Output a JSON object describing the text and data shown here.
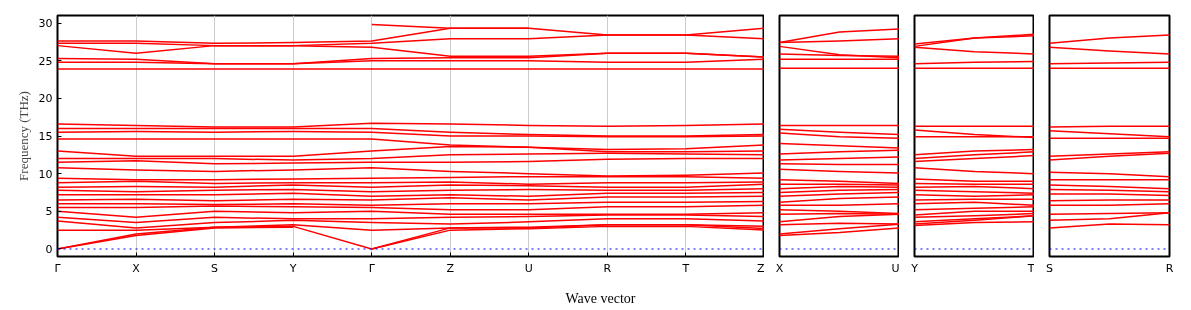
{
  "chart_data": [
    {
      "type": "line",
      "ylabel": "Frequency (THz)",
      "xlabel": "Wave vector",
      "categories": [
        "Γ",
        "X",
        "S",
        "Y",
        "Γ",
        "Z",
        "U",
        "R",
        "T",
        "Z"
      ],
      "ylim": [
        -1,
        31
      ],
      "yticks": [
        0,
        5,
        10,
        15,
        20,
        25,
        30
      ],
      "grid": "x",
      "marker": "none",
      "line_style": "solid",
      "ref_lines": [
        {
          "axis": "y",
          "value": 0,
          "color": "#0000ff",
          "line_style": "dotted"
        }
      ],
      "series": [
        {
          "color": "#ff0000",
          "values": [
            27.6,
            27.6,
            27.3,
            27.4,
            27.6,
            29.3,
            29.3,
            28.4,
            28.4,
            29.3
          ]
        },
        {
          "color": "#ff0000",
          "values": [
            27.3,
            27.3,
            27.0,
            27.0,
            27.3,
            27.9,
            27.9,
            28.4,
            28.4,
            27.9
          ]
        },
        {
          "color": "#ff0000",
          "values": [
            27.0,
            26.0,
            27.0,
            27.0,
            26.8,
            25.6,
            25.6,
            26.0,
            26.0,
            25.5
          ]
        },
        {
          "color": "#ff0000",
          "values": [
            25.3,
            25.2,
            24.6,
            24.6,
            25.3,
            25.4,
            25.4,
            26.0,
            26.0,
            25.5
          ]
        },
        {
          "color": "#ff0000",
          "values": [
            24.8,
            24.8,
            24.6,
            24.6,
            25.0,
            25.0,
            25.0,
            24.8,
            24.8,
            25.2
          ]
        },
        {
          "color": "#ff0000",
          "values": [
            23.9,
            23.9,
            23.9,
            23.9,
            23.9,
            23.9,
            23.9,
            23.9,
            23.9,
            23.9
          ]
        },
        {
          "color": "#ff0000",
          "values": [
            null,
            null,
            null,
            null,
            29.8,
            29.3,
            29.3,
            null,
            null,
            null
          ]
        },
        {
          "color": "#ff0000",
          "values": [
            16.6,
            16.4,
            16.2,
            16.2,
            16.7,
            16.6,
            16.4,
            16.3,
            16.4,
            16.6
          ]
        },
        {
          "color": "#ff0000",
          "values": [
            16.0,
            16.0,
            16.0,
            16.0,
            16.0,
            15.5,
            15.2,
            15.0,
            15.0,
            15.2
          ]
        },
        {
          "color": "#ff0000",
          "values": [
            15.5,
            15.6,
            15.5,
            15.6,
            15.5,
            15.0,
            15.0,
            14.9,
            14.9,
            15.0
          ]
        },
        {
          "color": "#ff0000",
          "values": [
            14.6,
            14.6,
            14.6,
            14.6,
            14.6,
            13.8,
            13.5,
            13.2,
            13.3,
            13.8
          ]
        },
        {
          "color": "#ff0000",
          "values": [
            13.0,
            12.3,
            12.3,
            12.3,
            13.0,
            13.6,
            13.5,
            12.9,
            12.9,
            13.0
          ]
        },
        {
          "color": "#ff0000",
          "values": [
            12.0,
            12.0,
            12.0,
            11.8,
            12.0,
            12.5,
            12.6,
            12.7,
            12.6,
            12.5
          ]
        },
        {
          "color": "#ff0000",
          "values": [
            11.5,
            11.7,
            11.3,
            11.4,
            11.5,
            11.5,
            11.6,
            11.9,
            12.0,
            12.0
          ]
        },
        {
          "color": "#ff0000",
          "values": [
            10.8,
            10.5,
            10.3,
            10.5,
            10.8,
            10.3,
            10.0,
            9.7,
            9.8,
            10.1
          ]
        },
        {
          "color": "#ff0000",
          "values": [
            9.4,
            9.2,
            9.2,
            9.3,
            9.4,
            9.5,
            9.6,
            9.6,
            9.6,
            9.4
          ]
        },
        {
          "color": "#ff0000",
          "values": [
            8.8,
            9.0,
            8.7,
            8.8,
            8.8,
            8.9,
            8.6,
            8.8,
            8.8,
            8.9
          ]
        },
        {
          "color": "#ff0000",
          "values": [
            8.2,
            8.3,
            8.2,
            8.5,
            8.2,
            8.5,
            8.4,
            8.2,
            8.2,
            8.6
          ]
        },
        {
          "color": "#ff0000",
          "values": [
            7.8,
            7.6,
            7.8,
            7.9,
            7.6,
            7.8,
            7.9,
            7.8,
            7.8,
            8.0
          ]
        },
        {
          "color": "#ff0000",
          "values": [
            7.2,
            7.2,
            7.2,
            7.4,
            7.0,
            7.2,
            7.0,
            7.4,
            7.4,
            7.5
          ]
        },
        {
          "color": "#ff0000",
          "values": [
            6.5,
            6.6,
            6.4,
            6.6,
            6.5,
            6.8,
            6.5,
            6.9,
            6.9,
            7.0
          ]
        },
        {
          "color": "#ff0000",
          "values": [
            6.0,
            6.0,
            5.9,
            6.0,
            5.8,
            6.0,
            6.0,
            6.2,
            6.2,
            6.3
          ]
        },
        {
          "color": "#ff0000",
          "values": [
            5.5,
            5.5,
            5.7,
            5.6,
            5.5,
            5.2,
            5.2,
            5.6,
            5.6,
            5.8
          ]
        },
        {
          "color": "#ff0000",
          "values": [
            5.0,
            4.2,
            5.0,
            4.8,
            5.0,
            4.6,
            4.6,
            4.6,
            4.6,
            4.8
          ]
        },
        {
          "color": "#ff0000",
          "values": [
            4.2,
            3.5,
            4.2,
            4.0,
            4.0,
            4.2,
            4.3,
            4.5,
            4.5,
            4.3
          ]
        },
        {
          "color": "#ff0000",
          "values": [
            3.7,
            2.8,
            3.5,
            3.8,
            3.5,
            3.3,
            3.6,
            4.0,
            4.0,
            3.7
          ]
        },
        {
          "color": "#ff0000",
          "values": [
            2.5,
            2.5,
            2.9,
            3.2,
            2.5,
            2.8,
            2.9,
            3.2,
            3.2,
            3.0
          ]
        },
        {
          "color": "#ff0000",
          "values": [
            0,
            2.0,
            2.9,
            3.0,
            0,
            2.8,
            2.8,
            3.2,
            3.2,
            2.7
          ]
        },
        {
          "color": "#ff0000",
          "values": [
            0,
            1.8,
            2.8,
            2.9,
            null,
            null,
            null,
            null,
            null,
            null
          ]
        },
        {
          "color": "#ff0000",
          "values": [
            null,
            null,
            null,
            null,
            0,
            2.5,
            2.7,
            3.0,
            3.0,
            2.5
          ]
        }
      ]
    },
    {
      "type": "line",
      "categories": [
        "X",
        null,
        "U"
      ],
      "ylim": [
        -1,
        31
      ],
      "yticks": [
        0,
        5,
        10,
        15,
        20,
        25,
        30
      ],
      "tick_labels": "x",
      "marker": "none",
      "line_style": "solid",
      "ref_lines": [
        {
          "axis": "y",
          "value": 0,
          "color": "#0000ff",
          "line_style": "dotted"
        }
      ],
      "series": [
        {
          "color": "#ff0000",
          "values": [
            27.4,
            28.8,
            29.2
          ]
        },
        {
          "color": "#ff0000",
          "values": [
            27.4,
            27.6,
            27.9
          ]
        },
        {
          "color": "#ff0000",
          "values": [
            26.9,
            25.8,
            25.4
          ]
        },
        {
          "color": "#ff0000",
          "values": [
            25.9,
            25.7,
            25.6
          ]
        },
        {
          "color": "#ff0000",
          "values": [
            25.2,
            25.2,
            25.2
          ]
        },
        {
          "color": "#ff0000",
          "values": [
            24.0,
            24.0,
            24.0
          ]
        },
        {
          "color": "#ff0000",
          "values": [
            16.4,
            16.4,
            16.4
          ]
        },
        {
          "color": "#ff0000",
          "values": [
            15.9,
            15.5,
            15.2
          ]
        },
        {
          "color": "#ff0000",
          "values": [
            15.4,
            14.9,
            14.7
          ]
        },
        {
          "color": "#ff0000",
          "values": [
            14.0,
            13.7,
            13.4
          ]
        },
        {
          "color": "#ff0000",
          "values": [
            12.6,
            12.9,
            13.1
          ]
        },
        {
          "color": "#ff0000",
          "values": [
            11.8,
            12.0,
            12.2
          ]
        },
        {
          "color": "#ff0000",
          "values": [
            11.3,
            11.2,
            11.2
          ]
        },
        {
          "color": "#ff0000",
          "values": [
            10.6,
            10.3,
            10.1
          ]
        },
        {
          "color": "#ff0000",
          "values": [
            9.2,
            9.0,
            8.7
          ]
        },
        {
          "color": "#ff0000",
          "values": [
            8.6,
            8.6,
            8.5
          ]
        },
        {
          "color": "#ff0000",
          "values": [
            8.0,
            8.3,
            8.2
          ]
        },
        {
          "color": "#ff0000",
          "values": [
            7.5,
            7.8,
            7.9
          ]
        },
        {
          "color": "#ff0000",
          "values": [
            7.0,
            7.3,
            7.5
          ]
        },
        {
          "color": "#ff0000",
          "values": [
            6.2,
            6.7,
            6.9
          ]
        },
        {
          "color": "#ff0000",
          "values": [
            5.8,
            5.8,
            6.0
          ]
        },
        {
          "color": "#ff0000",
          "values": [
            5.2,
            5.0,
            4.7
          ]
        },
        {
          "color": "#ff0000",
          "values": [
            4.6,
            4.7,
            4.6
          ]
        },
        {
          "color": "#ff0000",
          "values": [
            3.6,
            4.3,
            4.6
          ]
        },
        {
          "color": "#ff0000",
          "values": [
            3.2,
            3.4,
            3.3
          ]
        },
        {
          "color": "#ff0000",
          "values": [
            2.0,
            2.7,
            3.3
          ]
        },
        {
          "color": "#ff0000",
          "values": [
            1.8,
            2.2,
            2.8
          ]
        }
      ]
    },
    {
      "type": "line",
      "categories": [
        "Y",
        null,
        "T"
      ],
      "ylim": [
        -1,
        31
      ],
      "yticks": [
        0,
        5,
        10,
        15,
        20,
        25,
        30
      ],
      "tick_labels": "x",
      "marker": "none",
      "line_style": "solid",
      "ref_lines": [
        {
          "axis": "y",
          "value": 0,
          "color": "#0000ff",
          "line_style": "dotted"
        }
      ],
      "series": [
        {
          "color": "#ff0000",
          "values": [
            27.2,
            28.0,
            28.5
          ]
        },
        {
          "color": "#ff0000",
          "values": [
            26.9,
            28.0,
            28.3
          ]
        },
        {
          "color": "#ff0000",
          "values": [
            26.8,
            26.2,
            25.9
          ]
        },
        {
          "color": "#ff0000",
          "values": [
            24.6,
            24.8,
            24.9
          ]
        },
        {
          "color": "#ff0000",
          "values": [
            24.0,
            24.0,
            24.0
          ]
        },
        {
          "color": "#ff0000",
          "values": [
            16.3,
            16.3,
            16.3
          ]
        },
        {
          "color": "#ff0000",
          "values": [
            15.8,
            15.2,
            14.8
          ]
        },
        {
          "color": "#ff0000",
          "values": [
            14.9,
            14.9,
            14.9
          ]
        },
        {
          "color": "#ff0000",
          "values": [
            12.5,
            13.0,
            13.2
          ]
        },
        {
          "color": "#ff0000",
          "values": [
            12.0,
            12.5,
            12.9
          ]
        },
        {
          "color": "#ff0000",
          "values": [
            11.6,
            12.0,
            12.4
          ]
        },
        {
          "color": "#ff0000",
          "values": [
            10.8,
            10.3,
            10.0
          ]
        },
        {
          "color": "#ff0000",
          "values": [
            9.3,
            9.0,
            9.0
          ]
        },
        {
          "color": "#ff0000",
          "values": [
            8.7,
            8.6,
            8.6
          ]
        },
        {
          "color": "#ff0000",
          "values": [
            8.2,
            8.3,
            8.0
          ]
        },
        {
          "color": "#ff0000",
          "values": [
            7.8,
            7.6,
            7.4
          ]
        },
        {
          "color": "#ff0000",
          "values": [
            7.2,
            7.0,
            7.2
          ]
        },
        {
          "color": "#ff0000",
          "values": [
            6.5,
            6.6,
            6.6
          ]
        },
        {
          "color": "#ff0000",
          "values": [
            6.0,
            6.2,
            5.8
          ]
        },
        {
          "color": "#ff0000",
          "values": [
            5.2,
            5.4,
            5.6
          ]
        },
        {
          "color": "#ff0000",
          "values": [
            4.5,
            5.0,
            5.0
          ]
        },
        {
          "color": "#ff0000",
          "values": [
            4.2,
            4.4,
            4.7
          ]
        },
        {
          "color": "#ff0000",
          "values": [
            3.6,
            4.0,
            4.4
          ]
        },
        {
          "color": "#ff0000",
          "values": [
            3.3,
            3.8,
            4.4
          ]
        },
        {
          "color": "#ff0000",
          "values": [
            3.1,
            3.5,
            3.6
          ]
        }
      ]
    },
    {
      "type": "line",
      "categories": [
        "S",
        null,
        "R"
      ],
      "ylim": [
        -1,
        31
      ],
      "yticks": [
        0,
        5,
        10,
        15,
        20,
        25,
        30
      ],
      "tick_labels": "x",
      "marker": "none",
      "line_style": "solid",
      "ref_lines": [
        {
          "axis": "y",
          "value": 0,
          "color": "#0000ff",
          "line_style": "dotted"
        }
      ],
      "series": [
        {
          "color": "#ff0000",
          "values": [
            27.3,
            28.0,
            28.4
          ]
        },
        {
          "color": "#ff0000",
          "values": [
            26.8,
            26.3,
            25.9
          ]
        },
        {
          "color": "#ff0000",
          "values": [
            24.6,
            24.7,
            24.8
          ]
        },
        {
          "color": "#ff0000",
          "values": [
            24.0,
            24.0,
            24.0
          ]
        },
        {
          "color": "#ff0000",
          "values": [
            16.2,
            16.3,
            16.3
          ]
        },
        {
          "color": "#ff0000",
          "values": [
            15.7,
            15.3,
            14.9
          ]
        },
        {
          "color": "#ff0000",
          "values": [
            14.7,
            14.7,
            14.7
          ]
        },
        {
          "color": "#ff0000",
          "values": [
            12.3,
            12.6,
            12.9
          ]
        },
        {
          "color": "#ff0000",
          "values": [
            11.8,
            12.3,
            12.7
          ]
        },
        {
          "color": "#ff0000",
          "values": [
            10.2,
            10.0,
            9.6
          ]
        },
        {
          "color": "#ff0000",
          "values": [
            9.2,
            9.2,
            9.2
          ]
        },
        {
          "color": "#ff0000",
          "values": [
            8.5,
            8.3,
            8.0
          ]
        },
        {
          "color": "#ff0000",
          "values": [
            7.9,
            7.8,
            7.6
          ]
        },
        {
          "color": "#ff0000",
          "values": [
            7.3,
            7.3,
            7.1
          ]
        },
        {
          "color": "#ff0000",
          "values": [
            6.4,
            6.5,
            6.5
          ]
        },
        {
          "color": "#ff0000",
          "values": [
            5.8,
            5.8,
            6.0
          ]
        },
        {
          "color": "#ff0000",
          "values": [
            4.6,
            4.7,
            4.8
          ]
        },
        {
          "color": "#ff0000",
          "values": [
            3.8,
            4.0,
            4.8
          ]
        },
        {
          "color": "#ff0000",
          "values": [
            2.8,
            3.3,
            3.2
          ]
        }
      ]
    }
  ]
}
